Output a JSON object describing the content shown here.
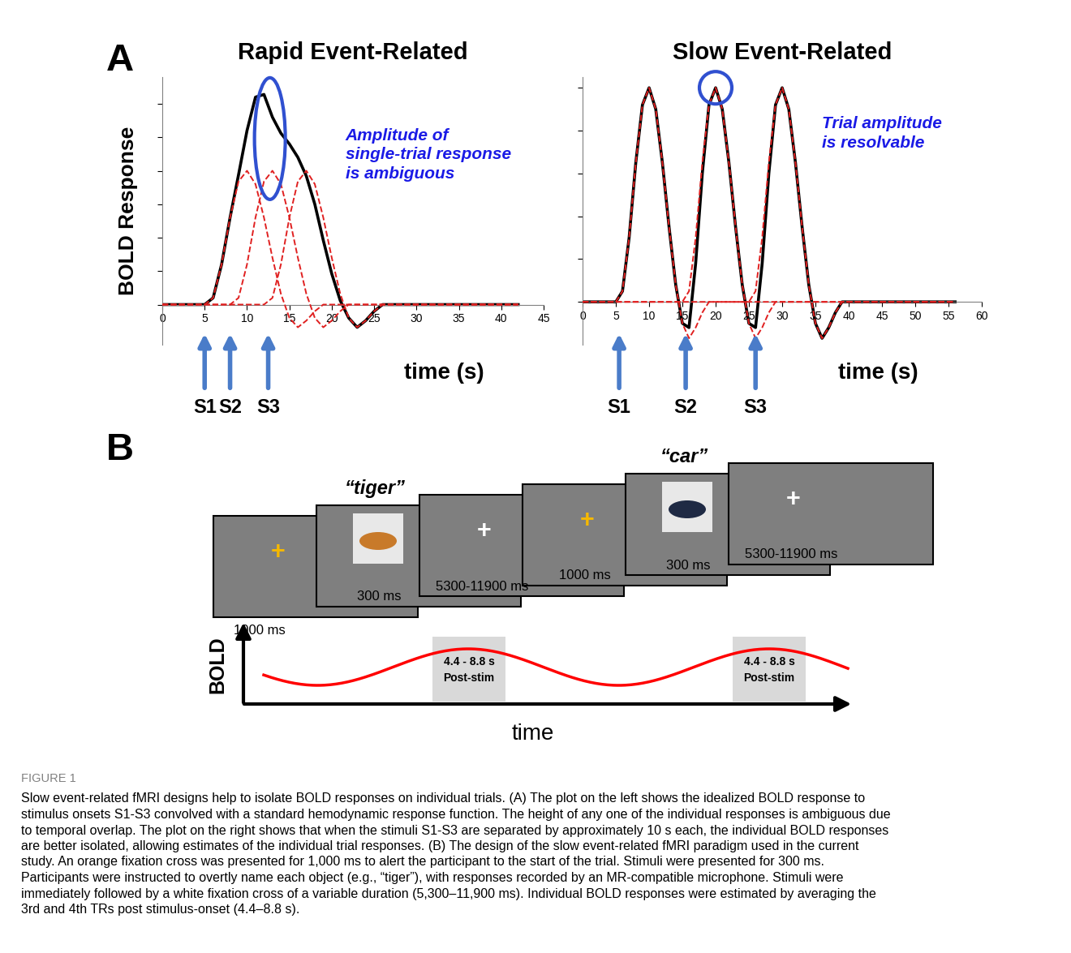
{
  "panel_labels": [
    "A",
    "B"
  ],
  "chart_data": [
    {
      "type": "line",
      "title": "Rapid Event-Related",
      "y_label": "BOLD Response",
      "x_label": "time (s)",
      "xlim": [
        0,
        45
      ],
      "xticks": [
        0,
        5,
        10,
        15,
        20,
        25,
        30,
        35,
        40,
        45
      ],
      "ylim": [
        -0.3,
        1.7
      ],
      "yticks": [
        0,
        0.25,
        0.5,
        0.75,
        1.0,
        1.25,
        1.5
      ],
      "tick_labels": "x",
      "annotation": "Amplitude of\nsingle-trial response\nis ambiguous",
      "stimuli": [
        {
          "label": "S1",
          "time": 5
        },
        {
          "label": "S2",
          "time": 8
        },
        {
          "label": "S3",
          "time": 12.5
        }
      ],
      "series": [
        {
          "color": "#000000",
          "line_style": "solid",
          "x": [
            0,
            5,
            6,
            7,
            8,
            9,
            10,
            11,
            12,
            13,
            14,
            15,
            16,
            17,
            18,
            19,
            20,
            21,
            22,
            23,
            24,
            25,
            26,
            42
          ],
          "values": [
            0,
            0,
            0.05,
            0.3,
            0.65,
            0.97,
            1.3,
            1.55,
            1.57,
            1.4,
            1.28,
            1.2,
            1.1,
            0.96,
            0.75,
            0.48,
            0.23,
            0.03,
            -0.1,
            -0.17,
            -0.12,
            -0.05,
            0,
            0
          ]
        },
        {
          "color": "#e02020",
          "line_style": "dashed",
          "x": [
            0,
            5,
            6,
            7,
            8,
            9,
            10,
            11,
            12,
            13,
            14,
            15,
            16,
            17,
            18,
            19,
            42
          ],
          "values": [
            0,
            0,
            0.05,
            0.3,
            0.65,
            0.92,
            1.0,
            0.9,
            0.65,
            0.35,
            0.08,
            -0.1,
            -0.17,
            -0.12,
            -0.05,
            0,
            0
          ]
        },
        {
          "color": "#e02020",
          "line_style": "dashed",
          "x": [
            0,
            8,
            9,
            10,
            11,
            12,
            13,
            14,
            15,
            16,
            17,
            18,
            19,
            20,
            21,
            22,
            42
          ],
          "values": [
            0,
            0,
            0.05,
            0.3,
            0.65,
            0.92,
            1.0,
            0.9,
            0.65,
            0.35,
            0.08,
            -0.1,
            -0.17,
            -0.12,
            -0.05,
            0,
            0
          ]
        },
        {
          "color": "#e02020",
          "line_style": "dashed",
          "x": [
            0,
            12,
            13,
            14,
            15,
            16,
            17,
            18,
            19,
            20,
            21,
            22,
            23,
            24,
            25,
            26,
            42
          ],
          "values": [
            0,
            0,
            0.05,
            0.3,
            0.65,
            0.92,
            1.0,
            0.9,
            0.65,
            0.35,
            0.08,
            -0.1,
            -0.17,
            -0.12,
            -0.05,
            0,
            0
          ]
        }
      ]
    },
    {
      "type": "line",
      "title": "Slow Event-Related",
      "x_label": "time (s)",
      "xlim": [
        0,
        60
      ],
      "xticks": [
        0,
        5,
        10,
        15,
        20,
        25,
        30,
        35,
        40,
        45,
        50,
        55,
        60
      ],
      "ylim": [
        -0.2,
        1.05
      ],
      "yticks": [
        0,
        0.2,
        0.4,
        0.6,
        0.8,
        1.0
      ],
      "tick_labels": "x",
      "annotation": "Trial amplitude\nis resolvable",
      "stimuli": [
        {
          "label": "S1",
          "time": 5.5
        },
        {
          "label": "S2",
          "time": 15.5
        },
        {
          "label": "S3",
          "time": 26
        }
      ],
      "series": [
        {
          "color": "#000000",
          "line_style": "solid",
          "x": [
            0,
            5,
            6,
            7,
            8,
            9,
            10,
            11,
            12,
            13,
            14,
            15,
            16,
            17,
            18,
            19,
            20,
            21,
            22,
            23,
            24,
            25,
            26,
            27,
            28,
            29,
            30,
            31,
            32,
            33,
            34,
            35,
            36,
            37,
            38,
            39,
            56
          ],
          "values": [
            0,
            0,
            0.05,
            0.3,
            0.65,
            0.92,
            1.0,
            0.9,
            0.65,
            0.35,
            0.08,
            -0.1,
            -0.12,
            0.18,
            0.6,
            0.92,
            1.0,
            0.9,
            0.65,
            0.35,
            0.08,
            -0.1,
            -0.12,
            0.18,
            0.6,
            0.92,
            1.0,
            0.9,
            0.65,
            0.35,
            0.08,
            -0.1,
            -0.17,
            -0.12,
            -0.05,
            0,
            0
          ]
        },
        {
          "color": "#e02020",
          "line_style": "dashed",
          "x": [
            0,
            5,
            6,
            7,
            8,
            9,
            10,
            11,
            12,
            13,
            14,
            15,
            16,
            17,
            18,
            19,
            56
          ],
          "values": [
            0,
            0,
            0.05,
            0.3,
            0.65,
            0.92,
            1.0,
            0.9,
            0.65,
            0.35,
            0.08,
            -0.1,
            -0.17,
            -0.12,
            -0.05,
            0,
            0
          ]
        },
        {
          "color": "#e02020",
          "line_style": "dashed",
          "x": [
            0,
            15,
            16,
            17,
            18,
            19,
            20,
            21,
            22,
            23,
            24,
            25,
            26,
            27,
            28,
            29,
            56
          ],
          "values": [
            0,
            0,
            0.05,
            0.3,
            0.65,
            0.92,
            1.0,
            0.9,
            0.65,
            0.35,
            0.08,
            -0.1,
            -0.17,
            -0.12,
            -0.05,
            0,
            0
          ]
        },
        {
          "color": "#e02020",
          "line_style": "dashed",
          "x": [
            0,
            25,
            26,
            27,
            28,
            29,
            30,
            31,
            32,
            33,
            34,
            35,
            36,
            37,
            38,
            39,
            56
          ],
          "values": [
            0,
            0,
            0.05,
            0.3,
            0.65,
            0.92,
            1.0,
            0.9,
            0.65,
            0.35,
            0.08,
            -0.1,
            -0.17,
            -0.12,
            -0.05,
            0,
            0
          ]
        }
      ]
    }
  ],
  "diagram": {
    "screens": [
      {
        "content": "+",
        "color": "#f5b800",
        "duration": "1000 ms"
      },
      {
        "word": "“tiger”",
        "duration": "300 ms"
      },
      {
        "content": "+",
        "color": "#ffffff",
        "duration": "5300-11900 ms"
      },
      {
        "content": "+",
        "color": "#f5b800",
        "duration": "1000 ms"
      },
      {
        "word": "“car”",
        "duration": "300 ms"
      },
      {
        "content": "+",
        "color": "#ffffff",
        "duration": "5300-11900 ms"
      }
    ],
    "bold_schematic": {
      "y_label": "BOLD",
      "x_label": "time",
      "windows": [
        "4.4 - 8.8 s\nPost-stim",
        "4.4 - 8.8 s\nPost-stim"
      ]
    }
  },
  "caption": {
    "label": "FIGURE 1",
    "lines": [
      "Slow event-related fMRI designs help to isolate BOLD responses on individual trials. (A) The plot on the left shows the idealized BOLD response to",
      "stimulus onsets S1-S3 convolved with a standard hemodynamic response function. The height of any one of the individual responses is ambiguous due",
      "to temporal overlap. The plot on the right shows that when the stimuli S1-S3 are separated by approximately 10 s each, the individual BOLD responses",
      "are better isolated, allowing estimates of the individual trial responses. (B) The design of the slow event-related fMRI paradigm used in the current",
      "study. An orange fixation cross was presented for 1,000 ms to alert the participant to the start of the trial. Stimuli were presented for 300 ms.",
      "Participants were instructed to overtly name each object (e.g., “tiger”), with responses recorded by an MR-compatible microphone. Stimuli were",
      "immediately followed by a white fixation cross of a variable duration (5,300–11,900 ms). Individual BOLD responses were estimated by averaging the",
      "3rd and 4th TRs post stimulus-onset (4.4–8.8 s)."
    ]
  }
}
